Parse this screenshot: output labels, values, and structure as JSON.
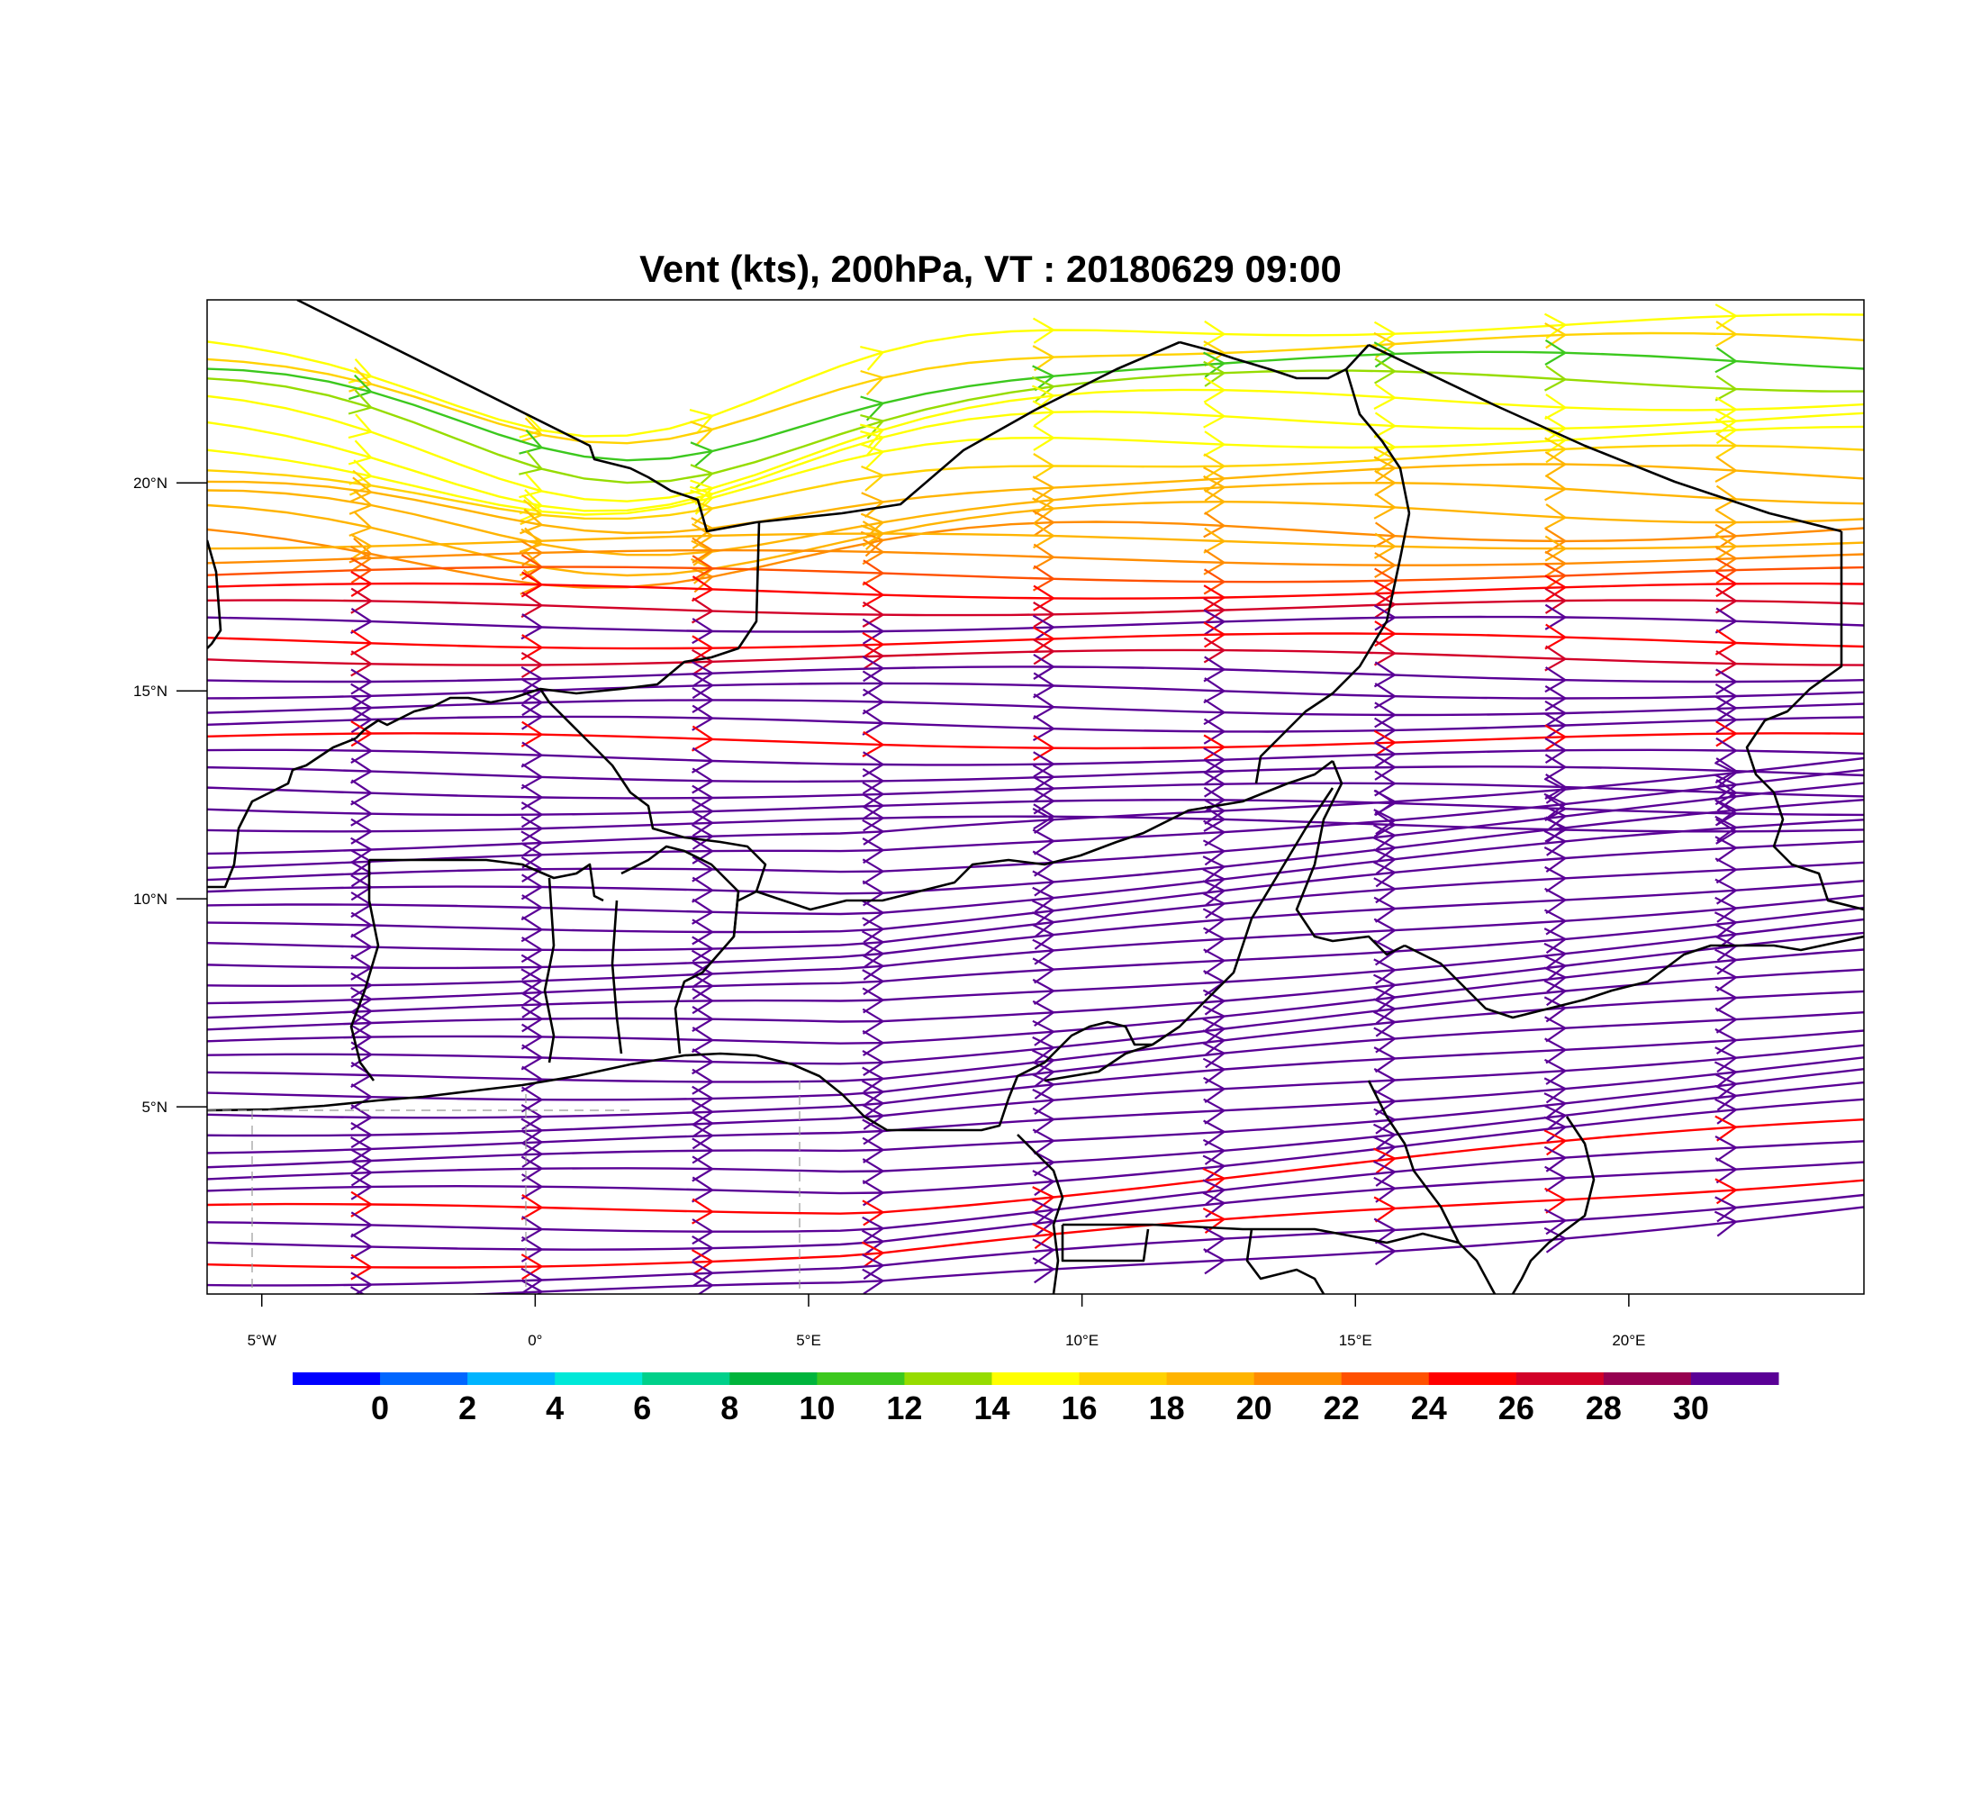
{
  "title": "Vent (kts), 200hPa, VT : 20180629  09:00",
  "map": {
    "lon_range": [
      -6,
      24.3
    ],
    "lat_range": [
      0.5,
      24.4
    ],
    "lon_ticks": [
      {
        "lon": -5,
        "label": "5°W"
      },
      {
        "lon": 0,
        "label": "0°"
      },
      {
        "lon": 5,
        "label": "5°E"
      },
      {
        "lon": 10,
        "label": "10°E"
      },
      {
        "lon": 15,
        "label": "15°E"
      },
      {
        "lon": 20,
        "label": "20°E"
      }
    ],
    "lat_ticks": [
      {
        "lat": 20,
        "label": "20°N"
      },
      {
        "lat": 15,
        "label": "15°N"
      },
      {
        "lat": 10,
        "label": "10°N"
      },
      {
        "lat": 5,
        "label": "5°N"
      }
    ]
  },
  "colorbar": {
    "colors": [
      "#0000ff",
      "#0066ff",
      "#00b4ff",
      "#00e8d8",
      "#00d08a",
      "#00b43c",
      "#3cc81e",
      "#96dc00",
      "#ffff00",
      "#ffd200",
      "#ffb400",
      "#ff8c00",
      "#ff5000",
      "#ff0000",
      "#d20028",
      "#960050",
      "#5a0096"
    ],
    "labels": [
      "0",
      "2",
      "4",
      "6",
      "8",
      "10",
      "12",
      "14",
      "16",
      "18",
      "20",
      "22",
      "24",
      "26",
      "28",
      "30"
    ]
  },
  "colors": {
    "border": "#000000",
    "frame": "#000000",
    "graticule": "#999999"
  }
}
